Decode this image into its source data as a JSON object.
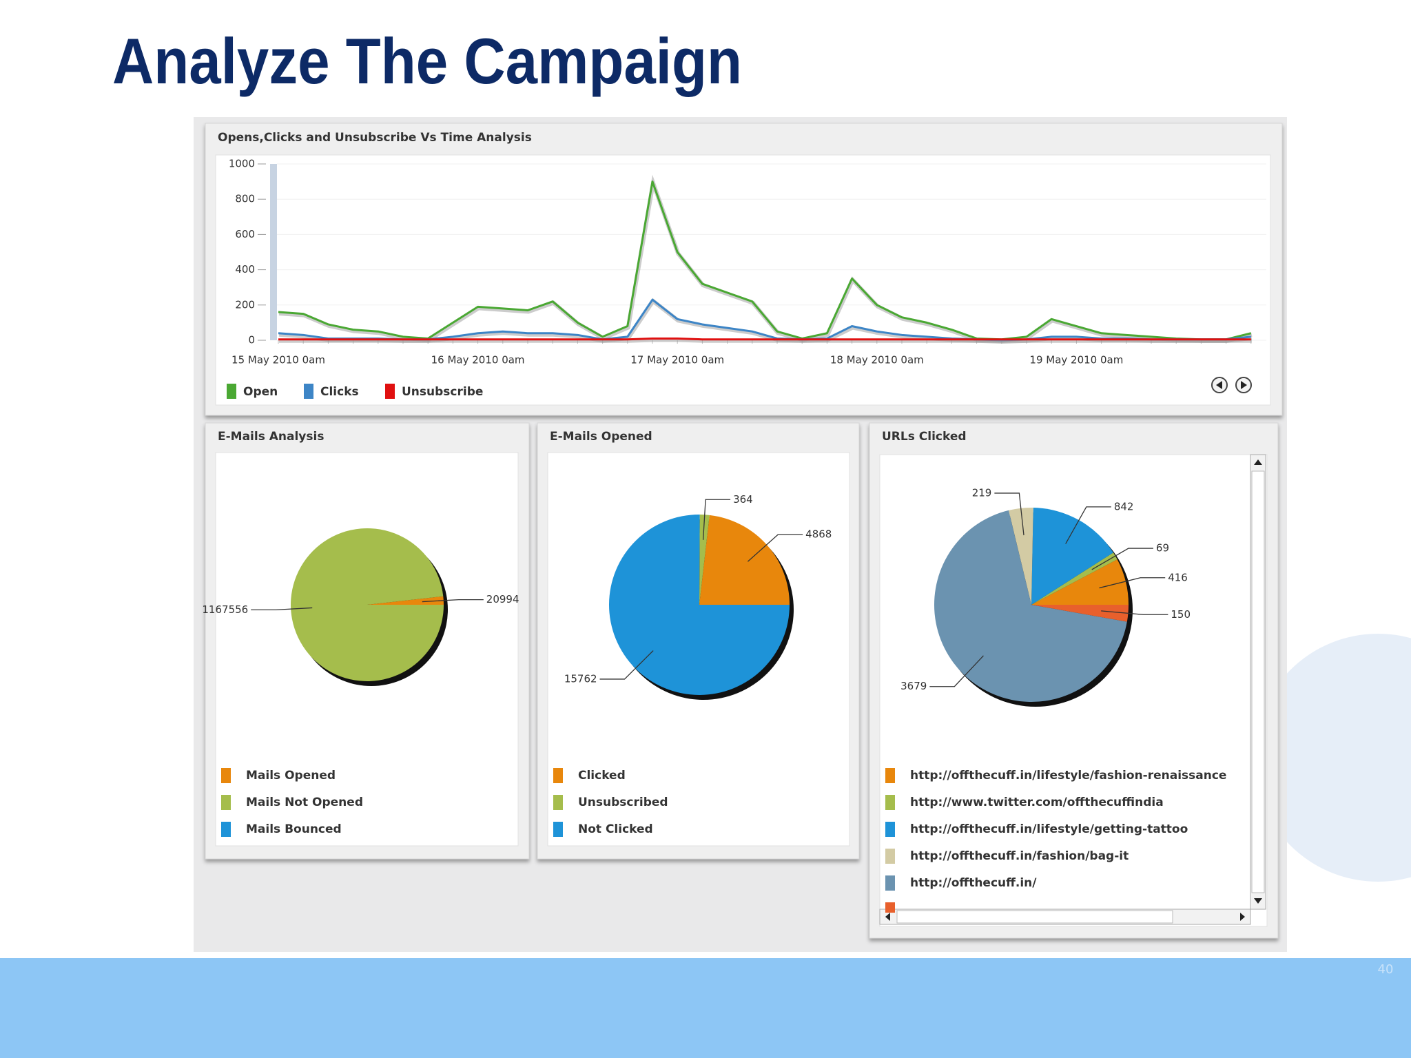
{
  "slide_title": "Analyze The Campaign",
  "page_number": "40",
  "chart_data": [
    {
      "type": "line",
      "title": "Opens,Clicks and Unsubscribe Vs Time Analysis",
      "categories": [
        "15 May 2010 0am",
        null,
        null,
        null,
        null,
        null,
        null,
        null,
        "16 May 2010 0am",
        null,
        null,
        null,
        null,
        null,
        null,
        null,
        "17 May 2010 0am",
        null,
        null,
        null,
        null,
        null,
        null,
        null,
        "18 May 2010 0am",
        null,
        null,
        null,
        null,
        null,
        null,
        null,
        "19 May 2010 0am",
        null,
        null,
        null,
        null,
        null,
        null,
        null
      ],
      "series": [
        {
          "name": "Open",
          "color": "#4aa833",
          "values": [
            160,
            150,
            90,
            60,
            50,
            20,
            10,
            100,
            190,
            180,
            170,
            220,
            100,
            20,
            80,
            900,
            500,
            320,
            270,
            220,
            50,
            10,
            40,
            350,
            200,
            130,
            100,
            60,
            10,
            5,
            20,
            120,
            80,
            40,
            30,
            20,
            10,
            5,
            5,
            40
          ]
        },
        {
          "name": "Clicks",
          "color": "#3d85c6",
          "values": [
            40,
            30,
            10,
            10,
            10,
            5,
            5,
            20,
            40,
            50,
            40,
            40,
            30,
            5,
            20,
            230,
            120,
            90,
            70,
            50,
            10,
            5,
            10,
            80,
            50,
            30,
            20,
            10,
            5,
            0,
            5,
            20,
            20,
            10,
            10,
            5,
            5,
            5,
            5,
            20
          ]
        },
        {
          "name": "Unsubscribe",
          "color": "#e01010",
          "values": [
            5,
            5,
            5,
            5,
            5,
            5,
            5,
            5,
            5,
            5,
            5,
            5,
            5,
            5,
            5,
            10,
            10,
            5,
            5,
            5,
            5,
            5,
            5,
            5,
            5,
            5,
            5,
            5,
            5,
            5,
            5,
            5,
            5,
            5,
            5,
            5,
            5,
            5,
            5,
            5
          ]
        }
      ],
      "ylim": [
        0,
        1000
      ],
      "yticks": [
        0,
        200,
        400,
        600,
        800,
        1000
      ],
      "grid": true,
      "legend": "bottom-left"
    },
    {
      "type": "pie",
      "title": "E-Mails Analysis",
      "categories": [
        "Mails Opened",
        "Mails Not Opened",
        "Mails Bounced"
      ],
      "values": [
        20994,
        1167556,
        0
      ],
      "colors": [
        "#e8870c",
        "#a5bd4c",
        "#1e93d8"
      ],
      "start_angle": 90,
      "direction": "counterclockwise"
    },
    {
      "type": "pie",
      "title": "E-Mails Opened",
      "categories": [
        "Clicked",
        "Unsubscribed",
        "Not Clicked"
      ],
      "values": [
        4868,
        364,
        15762
      ],
      "colors": [
        "#e8870c",
        "#a5bd4c",
        "#1e93d8"
      ],
      "start_angle": 90,
      "direction": "counterclockwise"
    },
    {
      "type": "pie",
      "title": "URLs Clicked",
      "categories": [
        "http://offthecuff.in/lifestyle/fashion-renaissance",
        "http://www.twitter.com/offthecuffindia",
        "http://offthecuff.in/lifestyle/getting-tattoo",
        "http://offthecuff.in/fashion/bag-it",
        "http://offthecuff.in/",
        null
      ],
      "values": [
        416,
        69,
        842,
        219,
        3679,
        150
      ],
      "colors": [
        "#e8870c",
        "#a5bd4c",
        "#1e93d8",
        "#d3cba4",
        "#6b93b0",
        "#e8602c"
      ],
      "start_angle": 90,
      "direction": "counterclockwise"
    }
  ]
}
